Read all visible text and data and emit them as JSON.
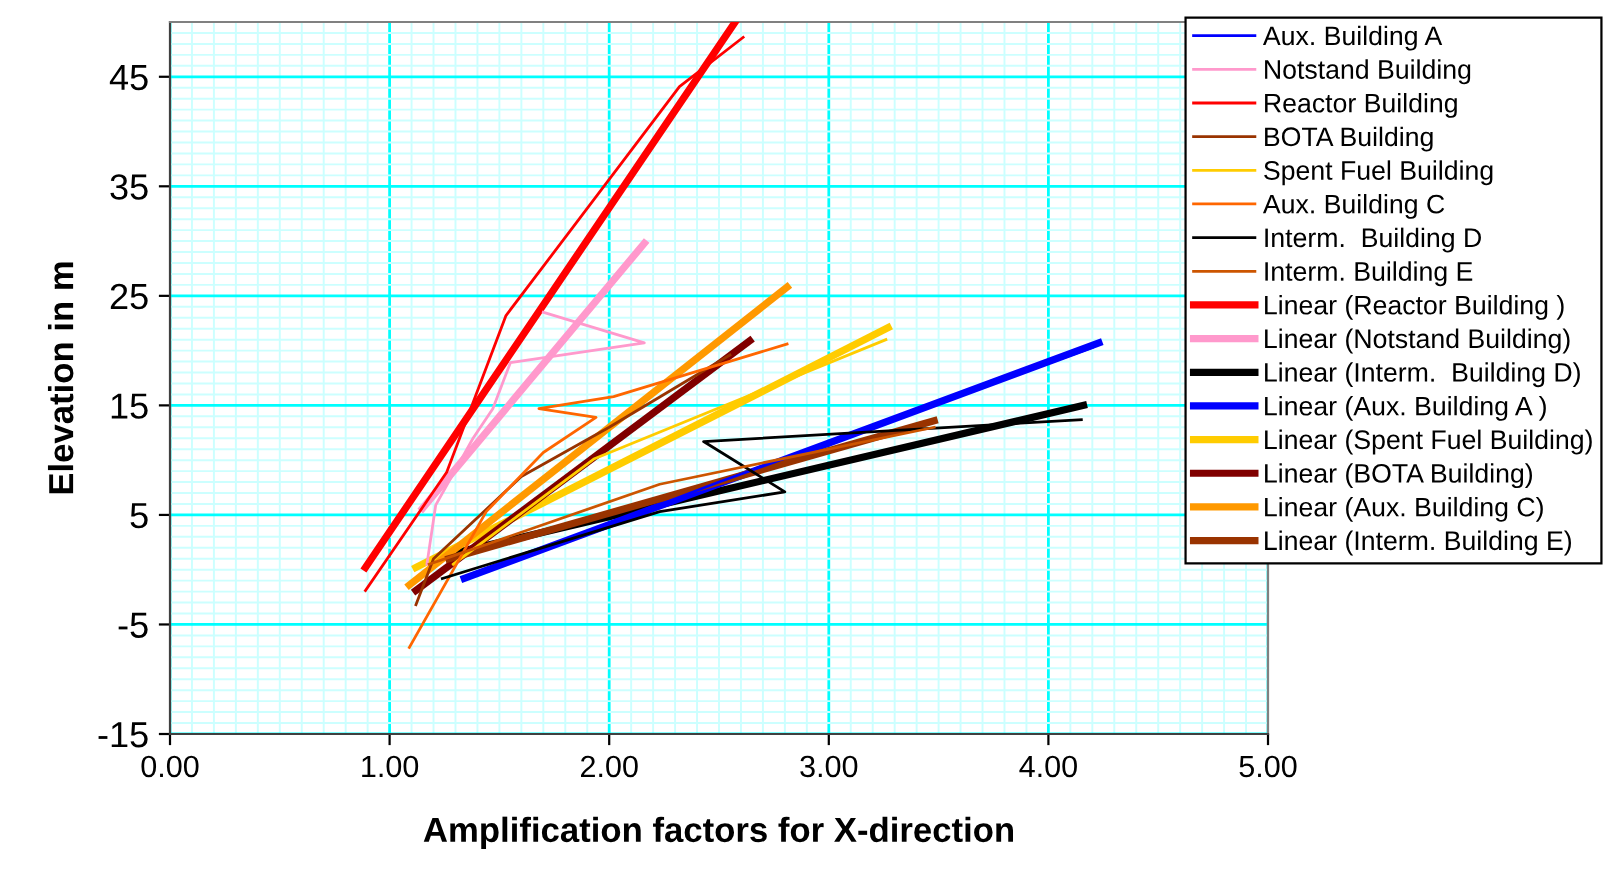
{
  "chart_data": {
    "type": "line",
    "xlabel": "Amplification factors for X-direction",
    "ylabel": "Elevation in m",
    "xlim": [
      0,
      5
    ],
    "ylim": [
      -15,
      50
    ],
    "xticks": [
      {
        "value": 0,
        "label": "0.00"
      },
      {
        "value": 1,
        "label": "1.00"
      },
      {
        "value": 2,
        "label": "2.00"
      },
      {
        "value": 3,
        "label": "3.00"
      },
      {
        "value": 4,
        "label": "4.00"
      },
      {
        "value": 5,
        "label": "5.00"
      },
      {
        "value": 0.1,
        "label": null
      },
      {
        "value": 0.2,
        "label": null
      },
      {
        "value": 0.3,
        "label": null
      },
      {
        "value": 0.4,
        "label": null
      },
      {
        "value": 0.5,
        "label": null
      },
      {
        "value": 0.6,
        "label": null
      },
      {
        "value": 0.7,
        "label": null
      },
      {
        "value": 0.8,
        "label": null
      },
      {
        "value": 0.9,
        "label": null
      },
      {
        "value": 1.1,
        "label": null
      },
      {
        "value": 1.2,
        "label": null
      },
      {
        "value": 1.3,
        "label": null
      },
      {
        "value": 1.4,
        "label": null
      },
      {
        "value": 1.5,
        "label": null
      },
      {
        "value": 1.6,
        "label": null
      },
      {
        "value": 1.7,
        "label": null
      },
      {
        "value": 1.8,
        "label": null
      },
      {
        "value": 1.9,
        "label": null
      },
      {
        "value": 2.1,
        "label": null
      },
      {
        "value": 2.2,
        "label": null
      },
      {
        "value": 2.3,
        "label": null
      },
      {
        "value": 2.4,
        "label": null
      },
      {
        "value": 2.5,
        "label": null
      },
      {
        "value": 2.6,
        "label": null
      },
      {
        "value": 2.7,
        "label": null
      },
      {
        "value": 2.8,
        "label": null
      },
      {
        "value": 2.9,
        "label": null
      },
      {
        "value": 3.1,
        "label": null
      },
      {
        "value": 3.2,
        "label": null
      },
      {
        "value": 3.3,
        "label": null
      },
      {
        "value": 3.4,
        "label": null
      },
      {
        "value": 3.5,
        "label": null
      },
      {
        "value": 3.6,
        "label": null
      },
      {
        "value": 3.7,
        "label": null
      },
      {
        "value": 3.8,
        "label": null
      },
      {
        "value": 3.9,
        "label": null
      },
      {
        "value": 4.1,
        "label": null
      },
      {
        "value": 4.2,
        "label": null
      },
      {
        "value": 4.3,
        "label": null
      },
      {
        "value": 4.4,
        "label": null
      },
      {
        "value": 4.5,
        "label": null
      },
      {
        "value": 4.6,
        "label": null
      },
      {
        "value": 4.7,
        "label": null
      },
      {
        "value": 4.8,
        "label": null
      },
      {
        "value": 4.9,
        "label": null
      }
    ],
    "yticks": [
      -15,
      -5,
      5,
      15,
      25,
      35,
      45,
      {
        "value": -14,
        "label": null
      },
      {
        "value": -13,
        "label": null
      },
      {
        "value": -12,
        "label": null
      },
      {
        "value": -11,
        "label": null
      },
      {
        "value": -10,
        "label": null
      },
      {
        "value": -9,
        "label": null
      },
      {
        "value": -8,
        "label": null
      },
      {
        "value": -7,
        "label": null
      },
      {
        "value": -6,
        "label": null
      },
      {
        "value": -4,
        "label": null
      },
      {
        "value": -3,
        "label": null
      },
      {
        "value": -2,
        "label": null
      },
      {
        "value": -1,
        "label": null
      },
      {
        "value": 0,
        "label": null
      },
      {
        "value": 1,
        "label": null
      },
      {
        "value": 2,
        "label": null
      },
      {
        "value": 3,
        "label": null
      },
      {
        "value": 4,
        "label": null
      },
      {
        "value": 6,
        "label": null
      },
      {
        "value": 7,
        "label": null
      },
      {
        "value": 8,
        "label": null
      },
      {
        "value": 9,
        "label": null
      },
      {
        "value": 10,
        "label": null
      },
      {
        "value": 11,
        "label": null
      },
      {
        "value": 12,
        "label": null
      },
      {
        "value": 13,
        "label": null
      },
      {
        "value": 14,
        "label": null
      },
      {
        "value": 16,
        "label": null
      },
      {
        "value": 17,
        "label": null
      },
      {
        "value": 18,
        "label": null
      },
      {
        "value": 19,
        "label": null
      },
      {
        "value": 20,
        "label": null
      },
      {
        "value": 21,
        "label": null
      },
      {
        "value": 22,
        "label": null
      },
      {
        "value": 23,
        "label": null
      },
      {
        "value": 24,
        "label": null
      },
      {
        "value": 26,
        "label": null
      },
      {
        "value": 27,
        "label": null
      },
      {
        "value": 28,
        "label": null
      },
      {
        "value": 29,
        "label": null
      },
      {
        "value": 30,
        "label": null
      },
      {
        "value": 31,
        "label": null
      },
      {
        "value": 32,
        "label": null
      },
      {
        "value": 33,
        "label": null
      },
      {
        "value": 34,
        "label": null
      },
      {
        "value": 36,
        "label": null
      },
      {
        "value": 37,
        "label": null
      },
      {
        "value": 38,
        "label": null
      },
      {
        "value": 39,
        "label": null
      },
      {
        "value": 40,
        "label": null
      },
      {
        "value": 41,
        "label": null
      },
      {
        "value": 42,
        "label": null
      },
      {
        "value": 43,
        "label": null
      },
      {
        "value": 44,
        "label": null
      },
      {
        "value": 46,
        "label": null
      },
      {
        "value": 47,
        "label": null
      },
      {
        "value": 48,
        "label": null
      },
      {
        "value": 49,
        "label": null
      }
    ],
    "grid": true,
    "legend": "top right",
    "marker": "none",
    "line_style": "solid",
    "series": [
      {
        "name": "Aux. Building A",
        "color": "#0000ff",
        "x": [
          1.38,
          2.5,
          4.2
        ],
        "values": [
          -0.6,
          8.0,
          20.3
        ]
      },
      {
        "name": "Notstand Building",
        "color": "#ff99cc",
        "x": [
          1.17,
          1.21,
          1.38,
          1.47,
          1.55,
          2.16,
          1.7
        ],
        "values": [
          0.5,
          5.9,
          12.0,
          14.7,
          18.9,
          20.7,
          23.5
        ]
      },
      {
        "name": "Reactor Building",
        "color": "#ff0000",
        "x": [
          0.89,
          1.26,
          1.53,
          2.32,
          2.61
        ],
        "values": [
          -1.9,
          8.9,
          23.2,
          44.1,
          48.6
        ]
      },
      {
        "name": "BOTA Building",
        "color": "#993300",
        "x": [
          1.12,
          1.2,
          1.6,
          2.0,
          2.55
        ],
        "values": [
          -3.2,
          1.0,
          8.5,
          13.0,
          19.6
        ]
      },
      {
        "name": "Spent Fuel Building",
        "color": "#ffcc00",
        "x": [
          1.29,
          1.93,
          3.26
        ],
        "values": [
          0.5,
          10.1,
          21.0
        ]
      },
      {
        "name": "Aux. Building C",
        "color": "#ff6600",
        "x": [
          1.09,
          1.44,
          1.7,
          1.94,
          1.68,
          2.02,
          2.81
        ],
        "values": [
          -7.1,
          5.3,
          10.7,
          13.9,
          14.7,
          15.8,
          20.6
        ]
      },
      {
        "name": "Interm.  Building D",
        "color": "#000000",
        "x": [
          1.24,
          2.23,
          2.8,
          2.43,
          4.15
        ],
        "values": [
          -0.8,
          5.3,
          7.1,
          11.7,
          13.7
        ]
      },
      {
        "name": "Interm. Building E",
        "color": "#cc5500",
        "x": [
          1.18,
          2.23,
          3.48
        ],
        "values": [
          0.5,
          7.8,
          13.0
        ]
      },
      {
        "name": "Linear (Reactor Building )",
        "color": "#ff0000",
        "x": [
          0.89,
          2.57
        ],
        "values": [
          0.2,
          49.9
        ]
      },
      {
        "name": "Linear (Notstand Building)",
        "color": "#ff99cc",
        "x": [
          1.15,
          2.16
        ],
        "values": [
          5.6,
          29.8
        ]
      },
      {
        "name": "Linear (Interm.  Building D)",
        "color": "#000000",
        "x": [
          1.27,
          4.16
        ],
        "values": [
          1.4,
          15.0
        ]
      },
      {
        "name": "Linear (Aux. Building A )",
        "color": "#0000ff",
        "x": [
          1.34,
          4.23
        ],
        "values": [
          -0.8,
          20.7
        ]
      },
      {
        "name": "Linear (Spent Fuel Building)",
        "color": "#ffcc00",
        "x": [
          1.12,
          3.27
        ],
        "values": [
          0.2,
          22.1
        ]
      },
      {
        "name": "Linear (BOTA Building)",
        "color": "#800000",
        "x": [
          1.12,
          2.64
        ],
        "values": [
          -1.9,
          20.9
        ]
      },
      {
        "name": "Linear (Aux. Building C)",
        "color": "#ff9900",
        "x": [
          1.09,
          2.81
        ],
        "values": [
          -1.4,
          25.8
        ]
      },
      {
        "name": "Linear (Interm. Building E)",
        "color": "#993300",
        "x": [
          1.27,
          3.48
        ],
        "values": [
          1.0,
          13.6
        ]
      }
    ]
  }
}
